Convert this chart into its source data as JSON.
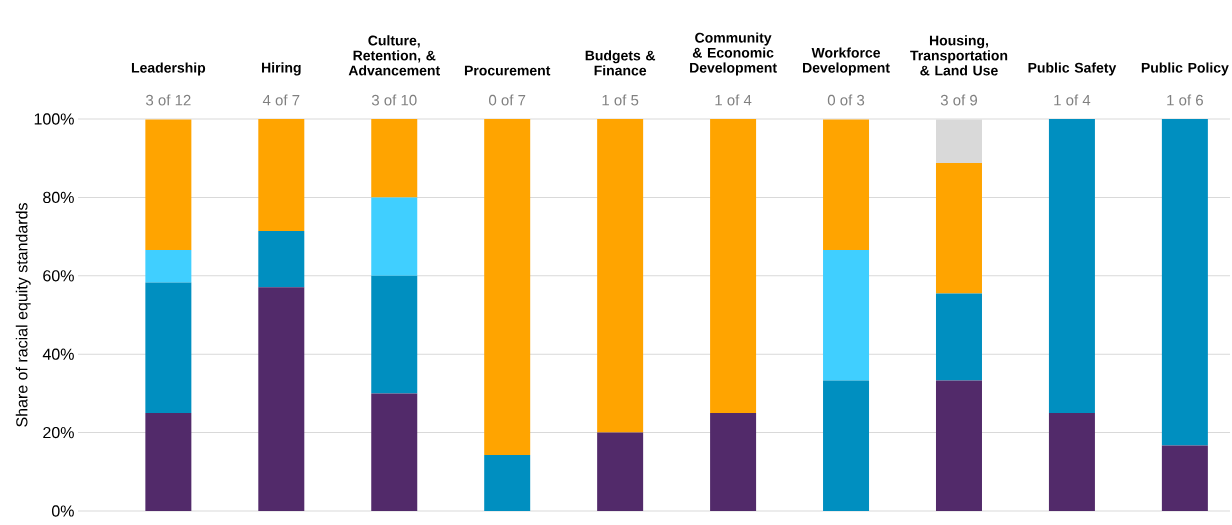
{
  "chart_data": {
    "type": "bar",
    "stacked": true,
    "ylabel": "Share of racial equity standards",
    "categories": [
      "Leadership",
      "Hiring",
      "Culture, Retention, & Advancement",
      "Procurement",
      "Budgets & Finance",
      "Community & Economic Development",
      "Workforce Development",
      "Housing, Transportation & Land Use",
      "Public Safety",
      "Public Policy"
    ],
    "series": [
      {
        "color": "#522a6a",
        "values": [
          25,
          57.1,
          30,
          0,
          20,
          25,
          0,
          33.3,
          25,
          16.7
        ]
      },
      {
        "color": "#008fc0",
        "values": [
          33.3,
          14.3,
          30,
          14.3,
          0,
          0,
          33.3,
          22.2,
          75,
          83.3
        ]
      },
      {
        "color": "#40cfff",
        "values": [
          8.3,
          0,
          20,
          0,
          0,
          0,
          33.3,
          0,
          0,
          0
        ]
      },
      {
        "color": "#ffa400",
        "values": [
          33.3,
          28.6,
          20,
          85.7,
          80,
          75,
          33.3,
          33.3,
          0,
          0
        ]
      },
      {
        "color": "#d9d9d9",
        "values": [
          0,
          0,
          0,
          0,
          0,
          0,
          0,
          11.1,
          0,
          0
        ]
      }
    ],
    "ylim": [
      0,
      100
    ],
    "yticks": [
      {
        "value": 0,
        "label": "0%"
      },
      {
        "value": 20,
        "label": "20%"
      },
      {
        "value": 40,
        "label": "40%"
      },
      {
        "value": 60,
        "label": "60%"
      },
      {
        "value": 80,
        "label": "80%"
      },
      {
        "value": 100,
        "label": "100%"
      }
    ],
    "grid": "y",
    "annotations": [
      "3 of 12",
      "4 of 7",
      "3 of 10",
      "0 of 7",
      "1 of 5",
      "1 of 4",
      "0 of 3",
      "3 of 9",
      "1 of 4",
      "1 of 6"
    ]
  }
}
